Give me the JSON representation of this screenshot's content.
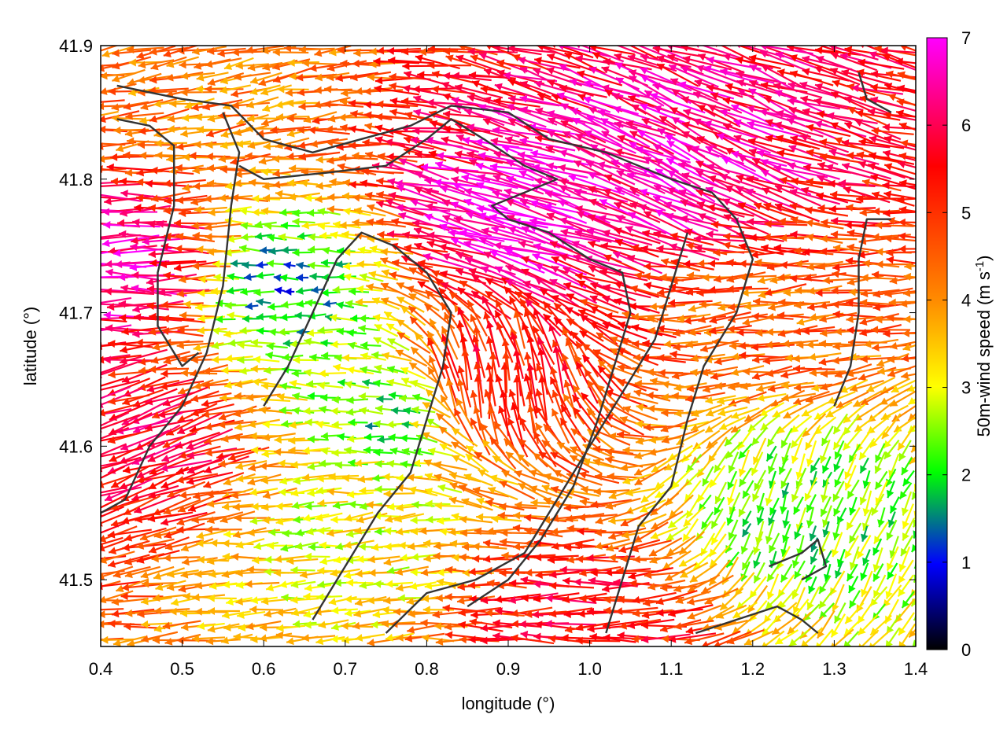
{
  "chart_data": {
    "type": "vector-field",
    "xlabel": "longitude (°)",
    "ylabel": "latitude (°)",
    "xlim": [
      0.4,
      1.4
    ],
    "ylim": [
      41.45,
      41.9
    ],
    "xticks": [
      0.4,
      0.5,
      0.6,
      0.7,
      0.8,
      0.9,
      1.0,
      1.1,
      1.2,
      1.3,
      1.4
    ],
    "xtick_labels": [
      "0.4",
      "0.5",
      "0.6",
      "0.7",
      "0.8",
      "0.9",
      "1.0",
      "1.1",
      "1.2",
      "1.3",
      "1.4"
    ],
    "yticks": [
      41.5,
      41.6,
      41.7,
      41.8,
      41.9
    ],
    "ytick_labels": [
      "41.5",
      "41.6",
      "41.7",
      "41.8",
      "41.9"
    ],
    "colorbar": {
      "label": "50m-wind speed (m s-1)",
      "label_main": "50m-wind speed (m s",
      "label_sup": "-1",
      "label_end": ")",
      "range": [
        0,
        7
      ],
      "ticks": [
        0,
        1,
        2,
        3,
        4,
        5,
        6,
        7
      ],
      "tick_labels": [
        "0",
        "1",
        "2",
        "3",
        "4",
        "5",
        "6",
        "7"
      ],
      "colors": [
        "#000000",
        "#0000ff",
        "#00ff00",
        "#ffff00",
        "#ff8c00",
        "#ff0000",
        "#ff00ff"
      ]
    },
    "wind_regions": [
      {
        "lon": 0.9,
        "lat": 41.77,
        "speed": 6.8,
        "direction_deg_from_east": 165
      },
      {
        "lon": 1.1,
        "lat": 41.8,
        "speed": 6.5,
        "direction_deg_from_east": 155
      },
      {
        "lon": 0.44,
        "lat": 41.73,
        "speed": 6.6,
        "direction_deg_from_east": 180
      },
      {
        "lon": 0.45,
        "lat": 41.6,
        "speed": 5.8,
        "direction_deg_from_east": 200
      },
      {
        "lon": 0.62,
        "lat": 41.72,
        "speed": 1.5,
        "direction_deg_from_east": 180
      },
      {
        "lon": 0.87,
        "lat": 41.65,
        "speed": 5.5,
        "direction_deg_from_east": 95
      },
      {
        "lon": 1.25,
        "lat": 41.55,
        "speed": 2.2,
        "direction_deg_from_east": 250
      },
      {
        "lon": 0.75,
        "lat": 41.63,
        "speed": 2.0,
        "direction_deg_from_east": 180
      },
      {
        "lon": 1.0,
        "lat": 41.47,
        "speed": 5.5,
        "direction_deg_from_east": 180
      },
      {
        "lon": 1.2,
        "lat": 41.7,
        "speed": 4.5,
        "direction_deg_from_east": 185
      },
      {
        "lon": 0.55,
        "lat": 41.87,
        "speed": 4.2,
        "direction_deg_from_east": 190
      },
      {
        "lon": 0.7,
        "lat": 41.53,
        "speed": 3.0,
        "direction_deg_from_east": 185
      }
    ],
    "contours": [
      [
        [
          0.42,
          41.87
        ],
        [
          0.5,
          41.86
        ],
        [
          0.56,
          41.855
        ],
        [
          0.6,
          41.83
        ],
        [
          0.66,
          41.82
        ],
        [
          0.72,
          41.83
        ],
        [
          0.78,
          41.84
        ],
        [
          0.83,
          41.855
        ],
        [
          0.9,
          41.85
        ],
        [
          0.95,
          41.83
        ],
        [
          1.02,
          41.82
        ],
        [
          1.1,
          41.8
        ],
        [
          1.15,
          41.79
        ],
        [
          1.18,
          41.77
        ],
        [
          1.2,
          41.74
        ],
        [
          1.18,
          41.7
        ],
        [
          1.14,
          41.66
        ],
        [
          1.12,
          41.62
        ],
        [
          1.1,
          41.57
        ],
        [
          1.06,
          41.54
        ],
        [
          1.04,
          41.5
        ],
        [
          1.02,
          41.46
        ]
      ],
      [
        [
          0.42,
          41.845
        ],
        [
          0.46,
          41.84
        ],
        [
          0.49,
          41.825
        ],
        [
          0.49,
          41.78
        ],
        [
          0.47,
          41.73
        ],
        [
          0.47,
          41.69
        ],
        [
          0.5,
          41.66
        ],
        [
          0.52,
          41.67
        ]
      ],
      [
        [
          0.57,
          41.81
        ],
        [
          0.6,
          41.8
        ],
        [
          0.68,
          41.805
        ],
        [
          0.75,
          41.81
        ],
        [
          0.8,
          41.83
        ],
        [
          0.83,
          41.845
        ],
        [
          0.87,
          41.83
        ],
        [
          0.92,
          41.81
        ],
        [
          0.96,
          41.8
        ],
        [
          0.92,
          41.79
        ],
        [
          0.88,
          41.78
        ],
        [
          0.9,
          41.77
        ],
        [
          0.95,
          41.76
        ],
        [
          1.0,
          41.74
        ],
        [
          1.04,
          41.73
        ],
        [
          1.05,
          41.7
        ],
        [
          1.03,
          41.66
        ],
        [
          1.01,
          41.62
        ],
        [
          0.98,
          41.57
        ],
        [
          0.94,
          41.53
        ],
        [
          0.9,
          41.5
        ],
        [
          0.85,
          41.48
        ]
      ],
      [
        [
          0.55,
          41.85
        ],
        [
          0.57,
          41.82
        ],
        [
          0.56,
          41.78
        ],
        [
          0.55,
          41.72
        ],
        [
          0.53,
          41.67
        ],
        [
          0.5,
          41.63
        ],
        [
          0.46,
          41.6
        ],
        [
          0.43,
          41.56
        ],
        [
          0.4,
          41.55
        ]
      ],
      [
        [
          0.66,
          41.47
        ],
        [
          0.7,
          41.51
        ],
        [
          0.74,
          41.55
        ],
        [
          0.78,
          41.58
        ],
        [
          0.8,
          41.62
        ],
        [
          0.82,
          41.66
        ],
        [
          0.83,
          41.7
        ],
        [
          0.8,
          41.73
        ],
        [
          0.76,
          41.75
        ],
        [
          0.72,
          41.76
        ],
        [
          0.69,
          41.74
        ],
        [
          0.66,
          41.7
        ],
        [
          0.63,
          41.66
        ],
        [
          0.6,
          41.63
        ]
      ],
      [
        [
          0.75,
          41.46
        ],
        [
          0.8,
          41.49
        ],
        [
          0.86,
          41.5
        ],
        [
          0.92,
          41.52
        ],
        [
          0.96,
          41.56
        ],
        [
          1.0,
          41.6
        ],
        [
          1.04,
          41.64
        ],
        [
          1.08,
          41.68
        ],
        [
          1.1,
          41.72
        ],
        [
          1.12,
          41.76
        ]
      ],
      [
        [
          1.13,
          41.46
        ],
        [
          1.18,
          41.47
        ],
        [
          1.23,
          41.48
        ],
        [
          1.26,
          41.47
        ],
        [
          1.28,
          41.46
        ]
      ],
      [
        [
          1.22,
          41.51
        ],
        [
          1.26,
          41.52
        ],
        [
          1.28,
          41.53
        ],
        [
          1.29,
          41.51
        ],
        [
          1.26,
          41.5
        ]
      ],
      [
        [
          1.3,
          41.63
        ],
        [
          1.32,
          41.66
        ],
        [
          1.33,
          41.7
        ],
        [
          1.33,
          41.74
        ],
        [
          1.34,
          41.77
        ],
        [
          1.37,
          41.77
        ]
      ],
      [
        [
          1.33,
          41.88
        ],
        [
          1.34,
          41.86
        ],
        [
          1.37,
          41.85
        ]
      ]
    ]
  }
}
